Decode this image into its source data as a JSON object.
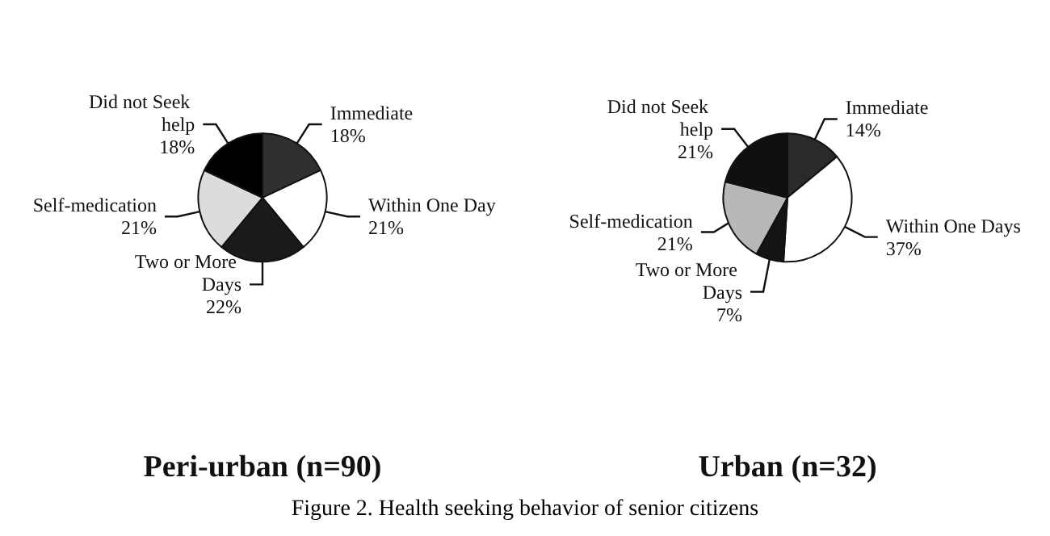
{
  "chart_data": [
    {
      "type": "pie",
      "title": "Peri-urban (n=90)",
      "categories": [
        "Immediate",
        "Within One Day",
        "Two or More Days",
        "Self-medication",
        "Did not Seek help"
      ],
      "values": [
        18,
        21,
        22,
        21,
        18
      ],
      "value_labels": [
        "18%",
        "21%",
        "22%",
        "21%",
        "18%"
      ],
      "colors": [
        "#303030",
        "#ffffff",
        "#1a1a1a",
        "#dcdcdc",
        "#000000"
      ],
      "annotations": [
        "Figure 2. Health seeking behavior of senior citizens"
      ]
    },
    {
      "type": "pie",
      "title": "Urban (n=32)",
      "categories": [
        "Immediate",
        "Within One Days",
        "Two or More Days",
        "Self-medication",
        "Did not Seek help"
      ],
      "values": [
        14,
        37,
        7,
        21,
        21
      ],
      "value_labels": [
        "14%",
        "37%",
        "7%",
        "21%",
        "21%"
      ],
      "colors": [
        "#2a2a2a",
        "#ffffff",
        "#141414",
        "#b8b8b8",
        "#101010"
      ]
    }
  ]
}
